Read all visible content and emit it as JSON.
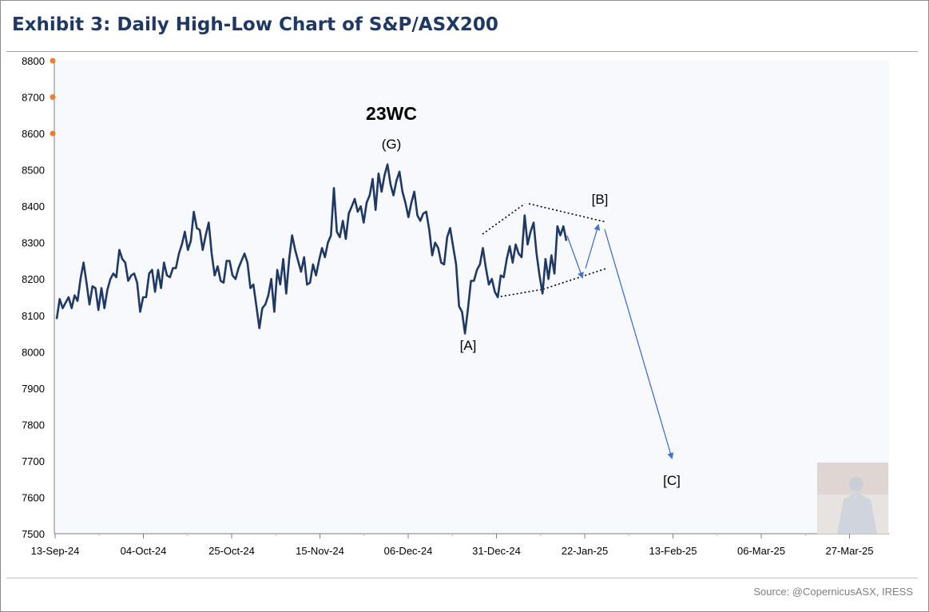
{
  "title": "Exhibit 3: Daily High-Low Chart of S&P/ASX200",
  "source": "Source: @CopernicusASX, IRESS",
  "colors": {
    "series": "#1f3864",
    "arrow": "#4472c4",
    "title": "#1f3864",
    "marker": "#ed7d31",
    "plot_bg": "#f7f9fd"
  },
  "chart_data": {
    "type": "line",
    "title": "Exhibit 3: Daily High-Low Chart of S&P/ASX200",
    "xlabel": "",
    "ylabel": "",
    "ylim": [
      7500,
      8800
    ],
    "y_ticks": [
      7500,
      7600,
      7700,
      7800,
      7900,
      8000,
      8100,
      8200,
      8300,
      8400,
      8500,
      8600,
      8700,
      8800
    ],
    "y_tick_labels": [
      "7500",
      "7600",
      "7700",
      "7800",
      "7900",
      "8000",
      "8100",
      "8200",
      "8300",
      "8400",
      "8500",
      "8600",
      "8700",
      "8800"
    ],
    "x_tick_labels": [
      "13-Sep-24",
      "04-Oct-24",
      "25-Oct-24",
      "15-Nov-24",
      "06-Dec-24",
      "31-Dec-24",
      "22-Jan-25",
      "13-Feb-25",
      "06-Mar-25",
      "27-Mar-25"
    ],
    "grid": false,
    "series": [
      {
        "values": [
          8090,
          8145,
          8120,
          8135,
          8150,
          8120,
          8155,
          8140,
          8200,
          8245,
          8190,
          8130,
          8180,
          8175,
          8115,
          8175,
          8120,
          8170,
          8200,
          8215,
          8205,
          8280,
          8255,
          8245,
          8195,
          8210,
          8215,
          8190,
          8110,
          8150,
          8150,
          8215,
          8225,
          8165,
          8225,
          8175,
          8245,
          8210,
          8205,
          8230,
          8230,
          8270,
          8295,
          8330,
          8280,
          8305,
          8385,
          8340,
          8335,
          8280,
          8320,
          8355,
          8270,
          8210,
          8235,
          8195,
          8190,
          8250,
          8250,
          8210,
          8200,
          8230,
          8250,
          8270,
          8245,
          8175,
          8185,
          8125,
          8065,
          8120,
          8130,
          8155,
          8200,
          8110,
          8225,
          8185,
          8255,
          8160,
          8255,
          8320,
          8280,
          8250,
          8220,
          8260,
          8185,
          8190,
          8240,
          8210,
          8250,
          8285,
          8260,
          8300,
          8320,
          8450,
          8330,
          8315,
          8360,
          8310,
          8380,
          8400,
          8420,
          8385,
          8400,
          8355,
          8410,
          8430,
          8475,
          8390,
          8490,
          8440,
          8485,
          8515,
          8460,
          8430,
          8470,
          8495,
          8440,
          8410,
          8370,
          8410,
          8440,
          8375,
          8360,
          8380,
          8385,
          8335,
          8265,
          8300,
          8285,
          8245,
          8240,
          8315,
          8340,
          8290,
          8240,
          8125,
          8110,
          8050,
          8120,
          8195,
          8195,
          8225,
          8240,
          8285,
          8230,
          8185,
          8200,
          8165,
          8150,
          8210,
          8205,
          8255,
          8290,
          8245,
          8295,
          8270,
          8260,
          8375,
          8295,
          8330,
          8355,
          8270,
          8210,
          8160,
          8255,
          8200,
          8265,
          8215,
          8345,
          8320,
          8345,
          8305
        ]
      }
    ],
    "annotations": [
      "23WC",
      "(G)",
      "[A]",
      "[B]",
      "[C]"
    ]
  }
}
